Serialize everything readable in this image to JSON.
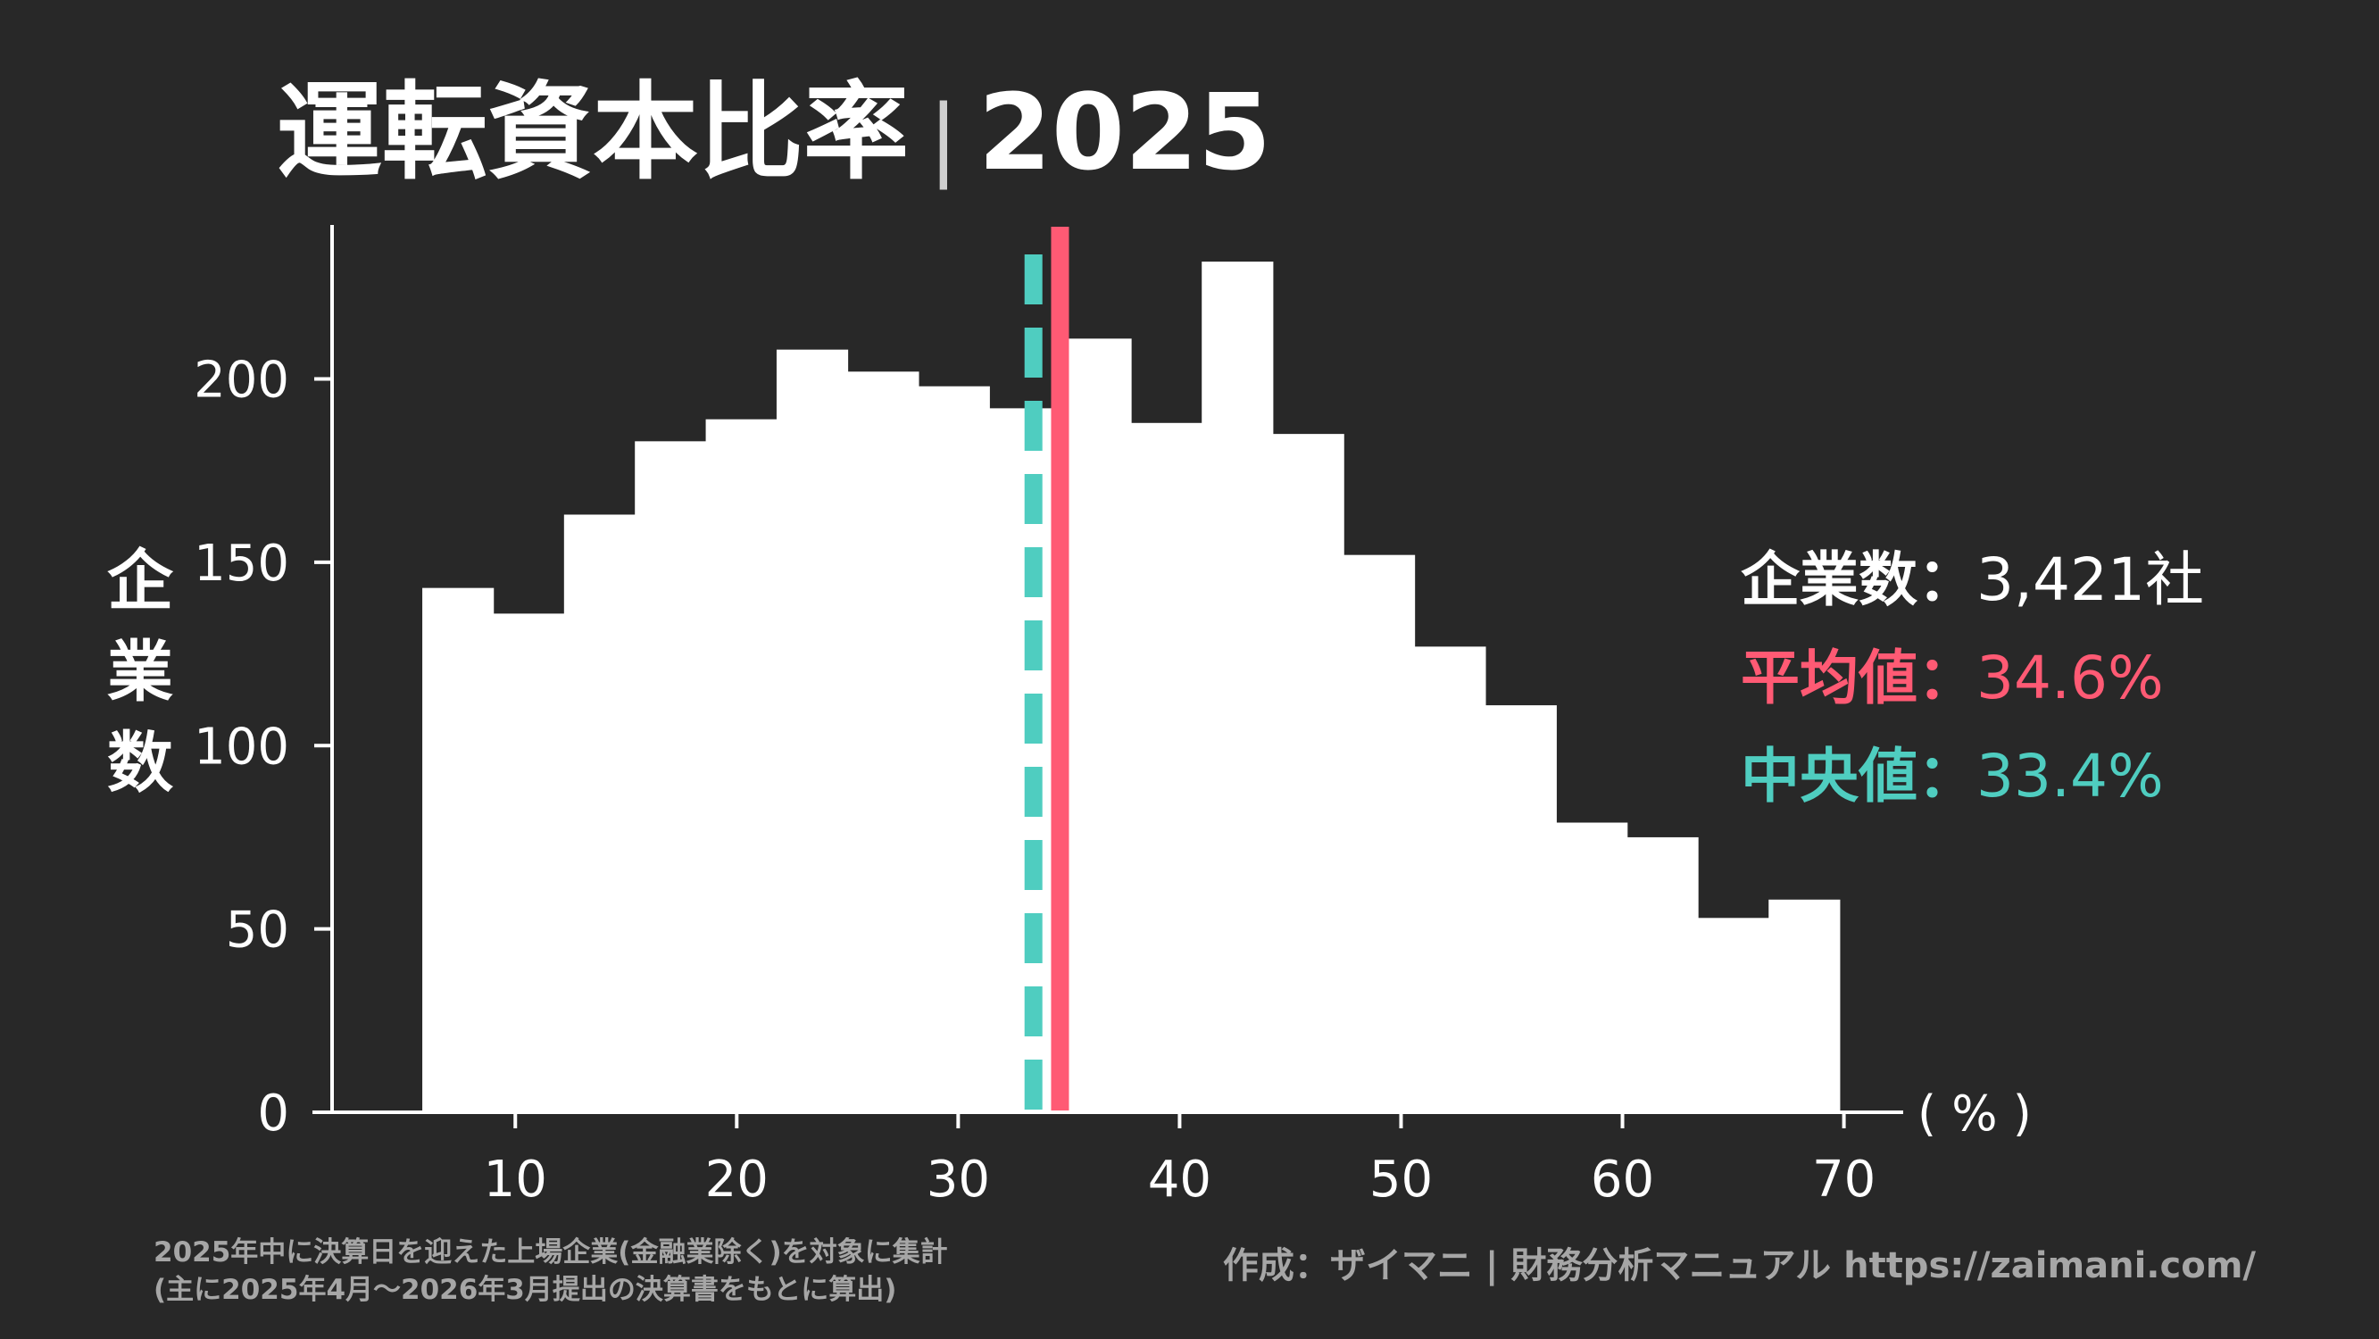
{
  "title_main": "運転資本比率",
  "title_sep": "|",
  "title_year": "2025",
  "y_label_chars": [
    "企",
    "業",
    "数"
  ],
  "x_unit": "( % )",
  "stats": {
    "count_label": "企業数",
    "count_value": "3,421社",
    "mean_label": "平均値",
    "mean_value": "34.6%",
    "median_label": "中央値",
    "median_value": "33.4%",
    "separator": "："
  },
  "colors": {
    "background": "#282828",
    "bars": "#ffffff",
    "mean": "#ff5a74",
    "median": "#4fcdc0",
    "note": "#a6a6a6"
  },
  "notes": [
    "2025年中に決算日を迎えた上場企業(金融業除く)を対象に集計",
    "(主に2025年4月～2026年3月提出の決算書をもとに算出)"
  ],
  "credit": "作成：ザイマニ | 財務分析マニュアル https://zaimani.com/",
  "chart_data": {
    "type": "bar",
    "bin_width": 3.2,
    "x": [
      7.4,
      10.6,
      13.8,
      17.0,
      20.2,
      23.4,
      26.6,
      29.8,
      33.0,
      36.2,
      39.4,
      42.6,
      45.8,
      49.0,
      52.2,
      55.4,
      58.6,
      61.8,
      65.0,
      68.2
    ],
    "values": [
      143,
      136,
      163,
      183,
      189,
      208,
      202,
      198,
      192,
      211,
      188,
      232,
      185,
      152,
      127,
      111,
      79,
      75,
      53,
      58
    ],
    "xlim": [
      1,
      73
    ],
    "ylim": [
      0,
      242
    ],
    "xticks": [
      10,
      20,
      30,
      40,
      50,
      60,
      70
    ],
    "yticks": [
      0,
      50,
      100,
      150,
      200
    ],
    "mean": 34.6,
    "median": 33.4,
    "xlabel": "( % )",
    "ylabel": "企業数"
  }
}
